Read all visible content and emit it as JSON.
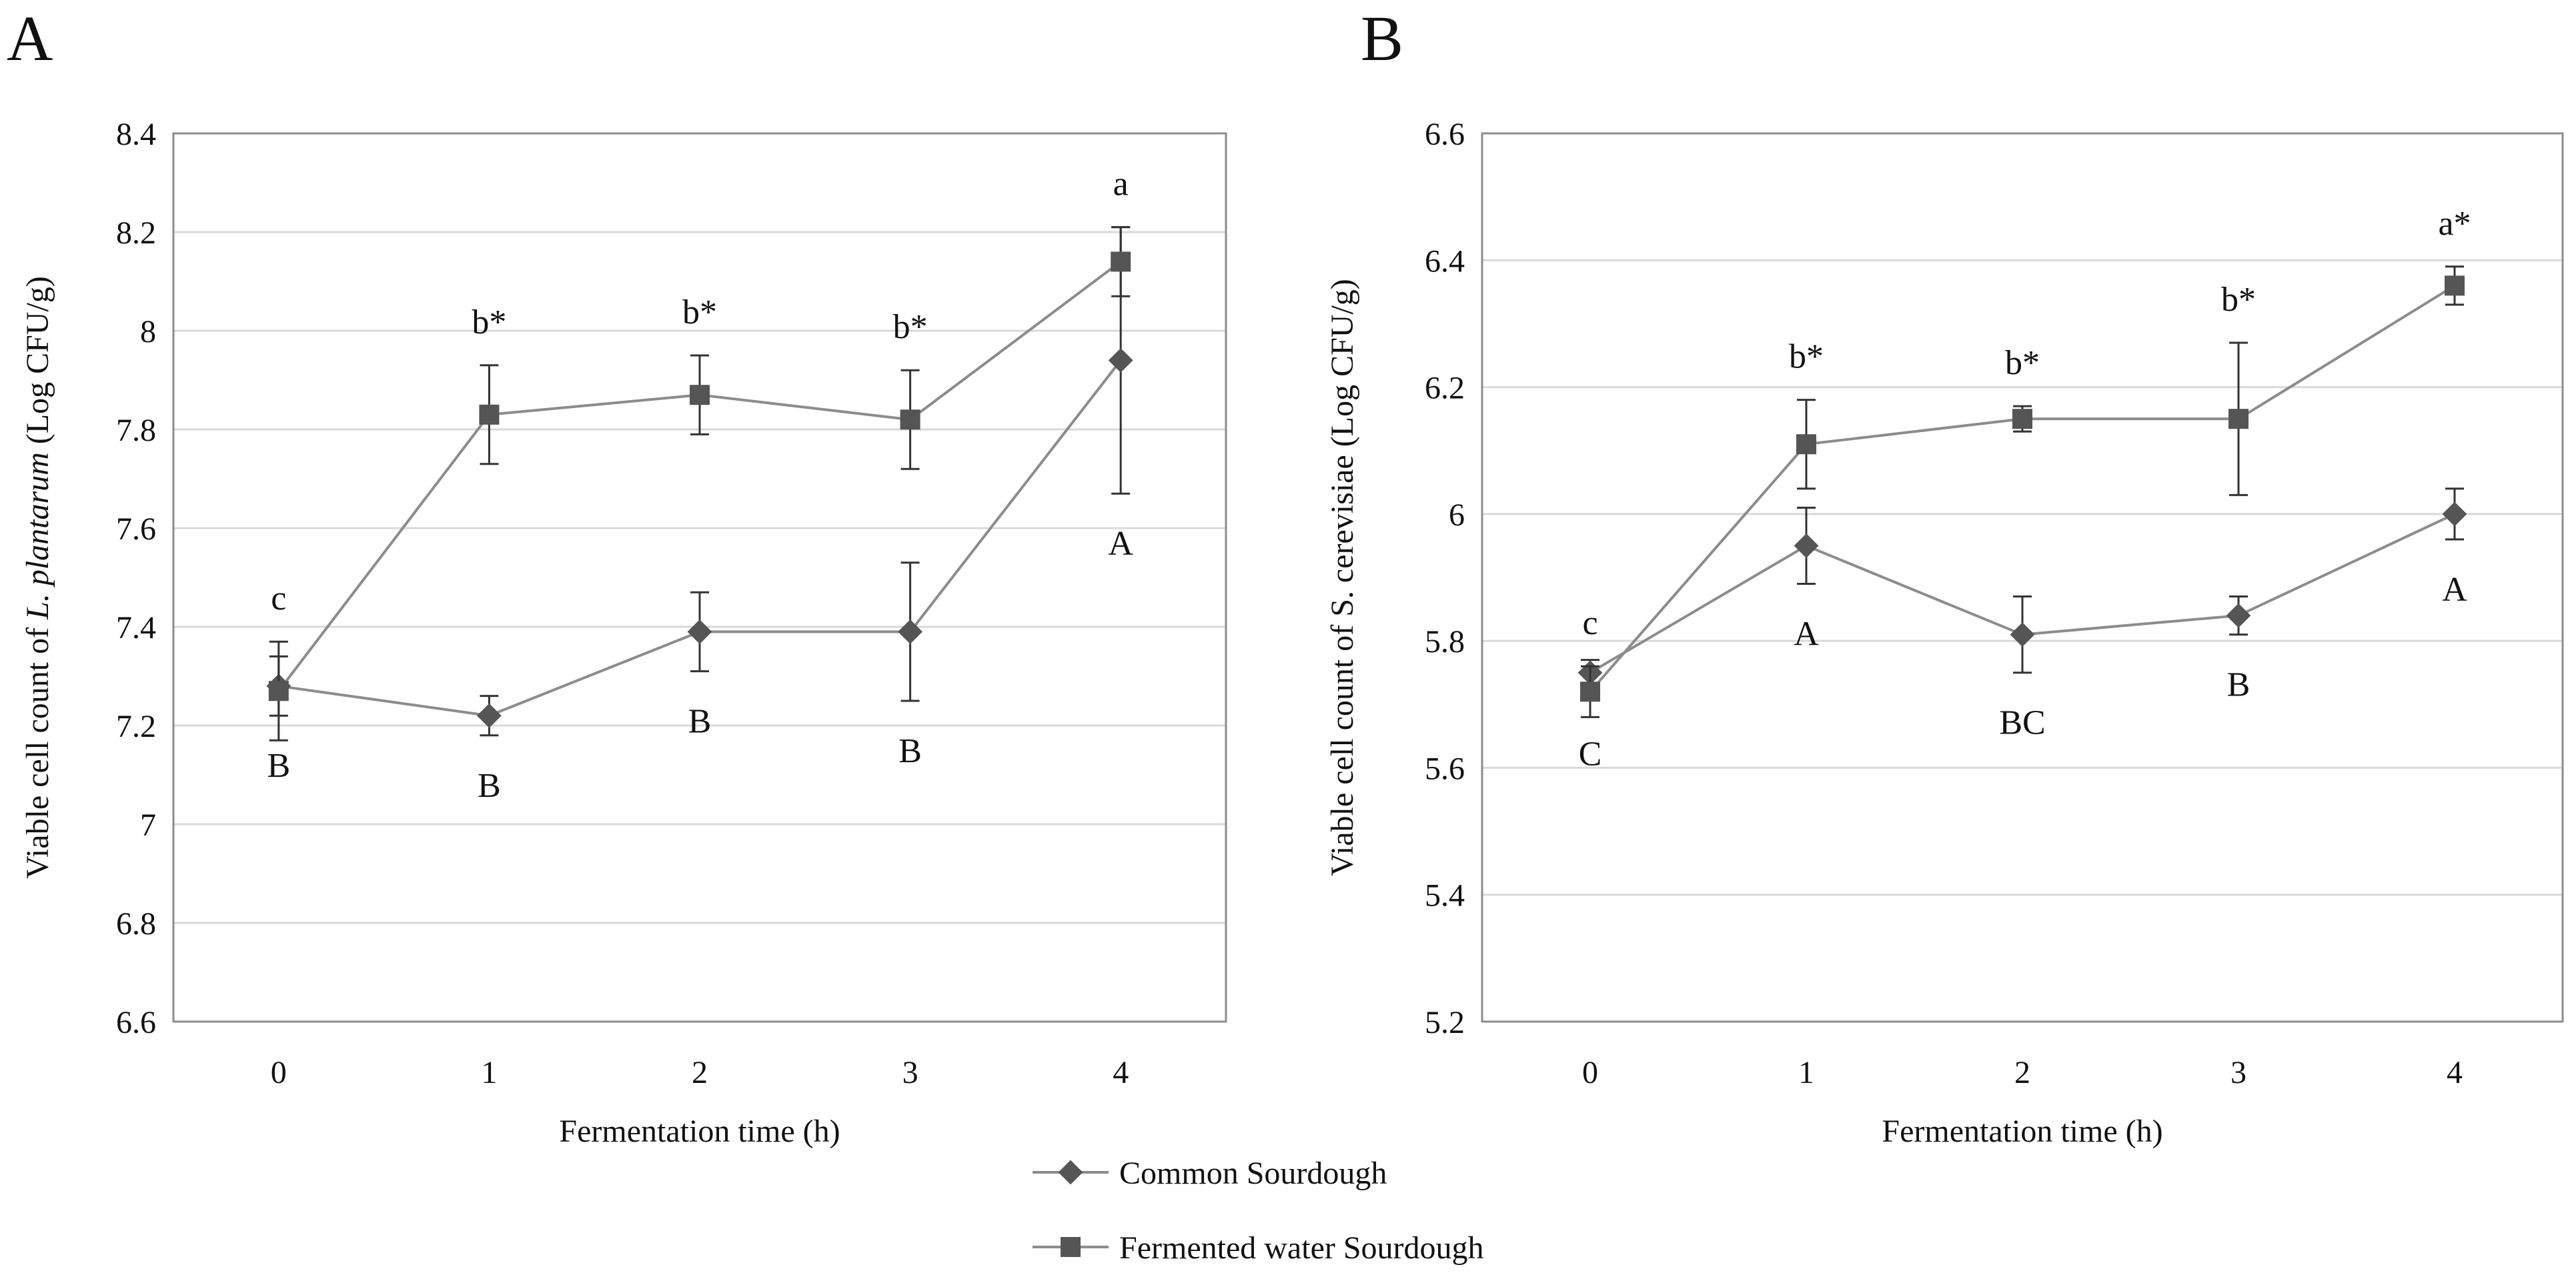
{
  "panels_meta": {
    "legend": {
      "series1": "Common Sourdough",
      "series2": "Fermented water Sourdough"
    },
    "colors": {
      "series_line": "#8c8c8c",
      "series_marker": "#555555",
      "grid": "#d9d9d9",
      "axis": "#8c8c8c"
    }
  },
  "chart_data": [
    {
      "type": "line",
      "panel_label": "A",
      "title": "",
      "xlabel": "Fermentation time (h)",
      "ylabel_prefix": "Viable cell count of ",
      "ylabel_italic": "L. plantarum",
      "ylabel_suffix": " (Log CFU/g)",
      "categories": [
        "0",
        "1",
        "2",
        "3",
        "4"
      ],
      "yticks": [
        "6.6",
        "6.8",
        "7",
        "7.2",
        "7.4",
        "7.6",
        "7.8",
        "8",
        "8.2",
        "8.4"
      ],
      "ylim": [
        6.6,
        8.4
      ],
      "grid": true,
      "series": [
        {
          "name": "Common Sourdough",
          "marker": "diamond",
          "values": [
            7.28,
            7.22,
            7.39,
            7.39,
            7.94
          ],
          "errors": [
            0.06,
            0.04,
            0.08,
            0.14,
            0.27
          ],
          "labels": [
            "B",
            "B",
            "B",
            "B",
            "A"
          ]
        },
        {
          "name": "Fermented water Sourdough",
          "marker": "square",
          "values": [
            7.27,
            7.83,
            7.87,
            7.82,
            8.14
          ],
          "errors": [
            0.1,
            0.1,
            0.08,
            0.1,
            0.07
          ],
          "labels": [
            "c",
            "b*",
            "b*",
            "b*",
            "a"
          ]
        }
      ]
    },
    {
      "type": "line",
      "panel_label": "B",
      "title": "",
      "xlabel": "Fermentation time (h)",
      "ylabel_prefix": "Viable cell count of S. cerevisiae",
      "ylabel_italic": "",
      "ylabel_suffix": " (Log CFU/g)",
      "categories": [
        "0",
        "1",
        "2",
        "3",
        "4"
      ],
      "yticks": [
        "5.2",
        "5.4",
        "5.6",
        "5.8",
        "6",
        "6.2",
        "6.4",
        "6.6"
      ],
      "ylim": [
        5.2,
        6.6
      ],
      "grid": true,
      "series": [
        {
          "name": "Common Sourdough",
          "marker": "diamond",
          "values": [
            5.75,
            5.95,
            5.81,
            5.84,
            6.0
          ],
          "errors": [
            0.02,
            0.06,
            0.06,
            0.03,
            0.04
          ],
          "labels": [
            "C",
            "A",
            "BC",
            "B",
            "A"
          ]
        },
        {
          "name": "Fermented water Sourdough",
          "marker": "square",
          "values": [
            5.72,
            6.11,
            6.15,
            6.15,
            6.36
          ],
          "errors": [
            0.04,
            0.07,
            0.02,
            0.12,
            0.03
          ],
          "labels": [
            "c",
            "b*",
            "b*",
            "b*",
            "a*"
          ]
        }
      ]
    }
  ]
}
